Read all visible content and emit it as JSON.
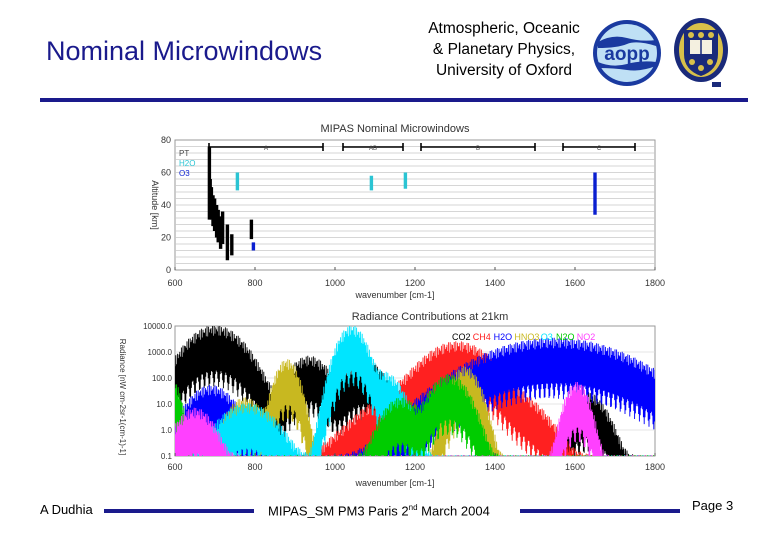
{
  "slide": {
    "title": "Nominal Microwindows",
    "institution": [
      "Atmospheric, Oceanic",
      "& Planetary Physics,",
      "University of Oxford"
    ],
    "logo_text": "aopp",
    "footer_left": "A Dudhia",
    "footer_mid_prefix": "MIPAS_SM PM3 Paris 2",
    "footer_mid_sup": "nd",
    "footer_mid_suffix": " March 2004",
    "footer_right": "Page 3",
    "colors": {
      "navy": "#1a1a8c",
      "aopp_blue": "#1a3aa0",
      "aopp_light": "#bfe0f5"
    }
  },
  "chart_data": [
    {
      "type": "bar",
      "title": "MIPAS Nominal Microwindows",
      "xlabel": "wavenumber [cm-1]",
      "ylabel": "Altitude [km]",
      "xlim": [
        600,
        1800
      ],
      "ylim": [
        0,
        80
      ],
      "xticks": [
        600,
        800,
        1000,
        1200,
        1400,
        1600,
        1800
      ],
      "yticks": [
        0,
        20,
        40,
        60,
        80
      ],
      "bands": [
        {
          "label": "A",
          "x0": 685,
          "x1": 970
        },
        {
          "label": "AB",
          "x0": 1020,
          "x1": 1170
        },
        {
          "label": "B",
          "x0": 1215,
          "x1": 1500
        },
        {
          "label": "C",
          "x0": 1570,
          "x1": 1750
        }
      ],
      "series": [
        {
          "name": "PT",
          "color": "#000000",
          "windows": [
            [
              686,
              76,
              45
            ],
            [
              688,
              56,
              20
            ],
            [
              691,
              51,
              20
            ],
            [
              695,
              46,
              19
            ],
            [
              699,
              44,
              20
            ],
            [
              704,
              40,
              20
            ],
            [
              708,
              37,
              20
            ],
            [
              714,
              33,
              20
            ],
            [
              719,
              36,
              20
            ],
            [
              731,
              28,
              22
            ],
            [
              742,
              22,
              13
            ],
            [
              791,
              31,
              12
            ]
          ]
        },
        {
          "name": "H2O",
          "color": "#2bc4d3",
          "windows": [
            [
              756,
              60,
              11
            ],
            [
              1091,
              58,
              9
            ],
            [
              1176,
              60,
              10
            ]
          ]
        },
        {
          "name": "O3",
          "color": "#0a1fd0",
          "windows": [
            [
              796,
              17,
              5
            ],
            [
              1650,
              60,
              26
            ]
          ]
        }
      ]
    },
    {
      "type": "line",
      "title": "Radiance Contributions at 21km",
      "xlabel": "wavenumber [cm-1]",
      "ylabel": "Radiance [nW cm-2sr-1(cm-1)-1]",
      "xlim": [
        600,
        1800
      ],
      "ylim": [
        0.1,
        10000
      ],
      "xticks": [
        600,
        800,
        1000,
        1200,
        1400,
        1600,
        1800
      ],
      "yticks": [
        0.1,
        1,
        10,
        100,
        1000,
        10000
      ],
      "ytick_labels": [
        "0.1",
        "1.0",
        "10.0",
        "100.0",
        "1000.0",
        "10000.0"
      ],
      "legend": [
        "CO2",
        "CH4",
        "H2O",
        "HNO3",
        "O3",
        "N2O",
        "NO2"
      ],
      "series": [
        {
          "name": "CO2",
          "color": "#000000",
          "peaks": [
            [
              700,
              3000,
              60
            ],
            [
              935,
              200,
              45
            ],
            [
              1070,
              150,
              45
            ],
            [
              1630,
              8,
              40
            ]
          ]
        },
        {
          "name": "CH4",
          "color": "#ff2020",
          "peaks": [
            [
              1306,
              700,
              70
            ],
            [
              1270,
              30,
              120
            ],
            [
              1450,
              5,
              60
            ]
          ]
        },
        {
          "name": "H2O",
          "color": "#0000ff",
          "peaks": [
            [
              1550,
              1000,
              150
            ],
            [
              690,
              15,
              50
            ]
          ]
        },
        {
          "name": "HNO3",
          "color": "#c8b820",
          "peaks": [
            [
              880,
              150,
              25
            ],
            [
              1325,
              80,
              30
            ],
            [
              775,
              5,
              40
            ]
          ]
        },
        {
          "name": "O3",
          "color": "#00e5ff",
          "peaks": [
            [
              1042,
              3000,
              30
            ],
            [
              1120,
              50,
              40
            ],
            [
              780,
              3,
              60
            ]
          ]
        },
        {
          "name": "N2O",
          "color": "#00cc00",
          "peaks": [
            [
              1285,
              40,
              40
            ],
            [
              1165,
              5,
              40
            ],
            [
              589,
              30,
              20
            ]
          ]
        },
        {
          "name": "NO2",
          "color": "#ff40ff",
          "peaks": [
            [
              1605,
              20,
              25
            ],
            [
              650,
              2,
              40
            ]
          ]
        }
      ]
    }
  ]
}
